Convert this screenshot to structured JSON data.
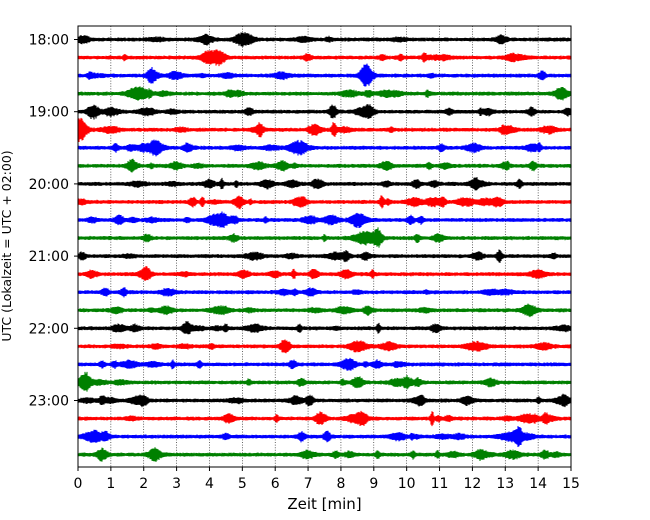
{
  "chart_data": {
    "type": "line",
    "title": "",
    "xlabel": "Zeit  [min]",
    "ylabel": "UTC (Lokalzeit = UTC + 02:00)",
    "xlim": [
      0,
      15
    ],
    "x_ticks": [
      "0",
      "1",
      "2",
      "3",
      "4",
      "5",
      "6",
      "7",
      "8",
      "9",
      "10",
      "11",
      "12",
      "13",
      "14",
      "15"
    ],
    "y_tick_labels": [
      "18:00",
      "19:00",
      "20:00",
      "21:00",
      "22:00",
      "23:00"
    ],
    "rows_per_hour": 4,
    "row_interval_minutes": 15,
    "grid_x": true,
    "line_colors": [
      "#000000",
      "#ff0000",
      "#0000ff",
      "#008000"
    ],
    "series": [
      {
        "start": "18:00",
        "color": "#000000"
      },
      {
        "start": "18:15",
        "color": "#ff0000"
      },
      {
        "start": "18:30",
        "color": "#0000ff"
      },
      {
        "start": "18:45",
        "color": "#008000"
      },
      {
        "start": "19:00",
        "color": "#000000"
      },
      {
        "start": "19:15",
        "color": "#ff0000"
      },
      {
        "start": "19:30",
        "color": "#0000ff"
      },
      {
        "start": "19:45",
        "color": "#008000"
      },
      {
        "start": "20:00",
        "color": "#000000"
      },
      {
        "start": "20:15",
        "color": "#ff0000"
      },
      {
        "start": "20:30",
        "color": "#0000ff"
      },
      {
        "start": "20:45",
        "color": "#008000"
      },
      {
        "start": "21:00",
        "color": "#000000"
      },
      {
        "start": "21:15",
        "color": "#ff0000"
      },
      {
        "start": "21:30",
        "color": "#0000ff"
      },
      {
        "start": "21:45",
        "color": "#008000"
      },
      {
        "start": "22:00",
        "color": "#000000"
      },
      {
        "start": "22:15",
        "color": "#ff0000"
      },
      {
        "start": "22:30",
        "color": "#0000ff"
      },
      {
        "start": "22:45",
        "color": "#008000"
      },
      {
        "start": "23:00",
        "color": "#000000"
      },
      {
        "start": "23:15",
        "color": "#ff0000"
      },
      {
        "start": "23:30",
        "color": "#0000ff"
      },
      {
        "start": "23:45",
        "color": "#008000"
      }
    ]
  }
}
